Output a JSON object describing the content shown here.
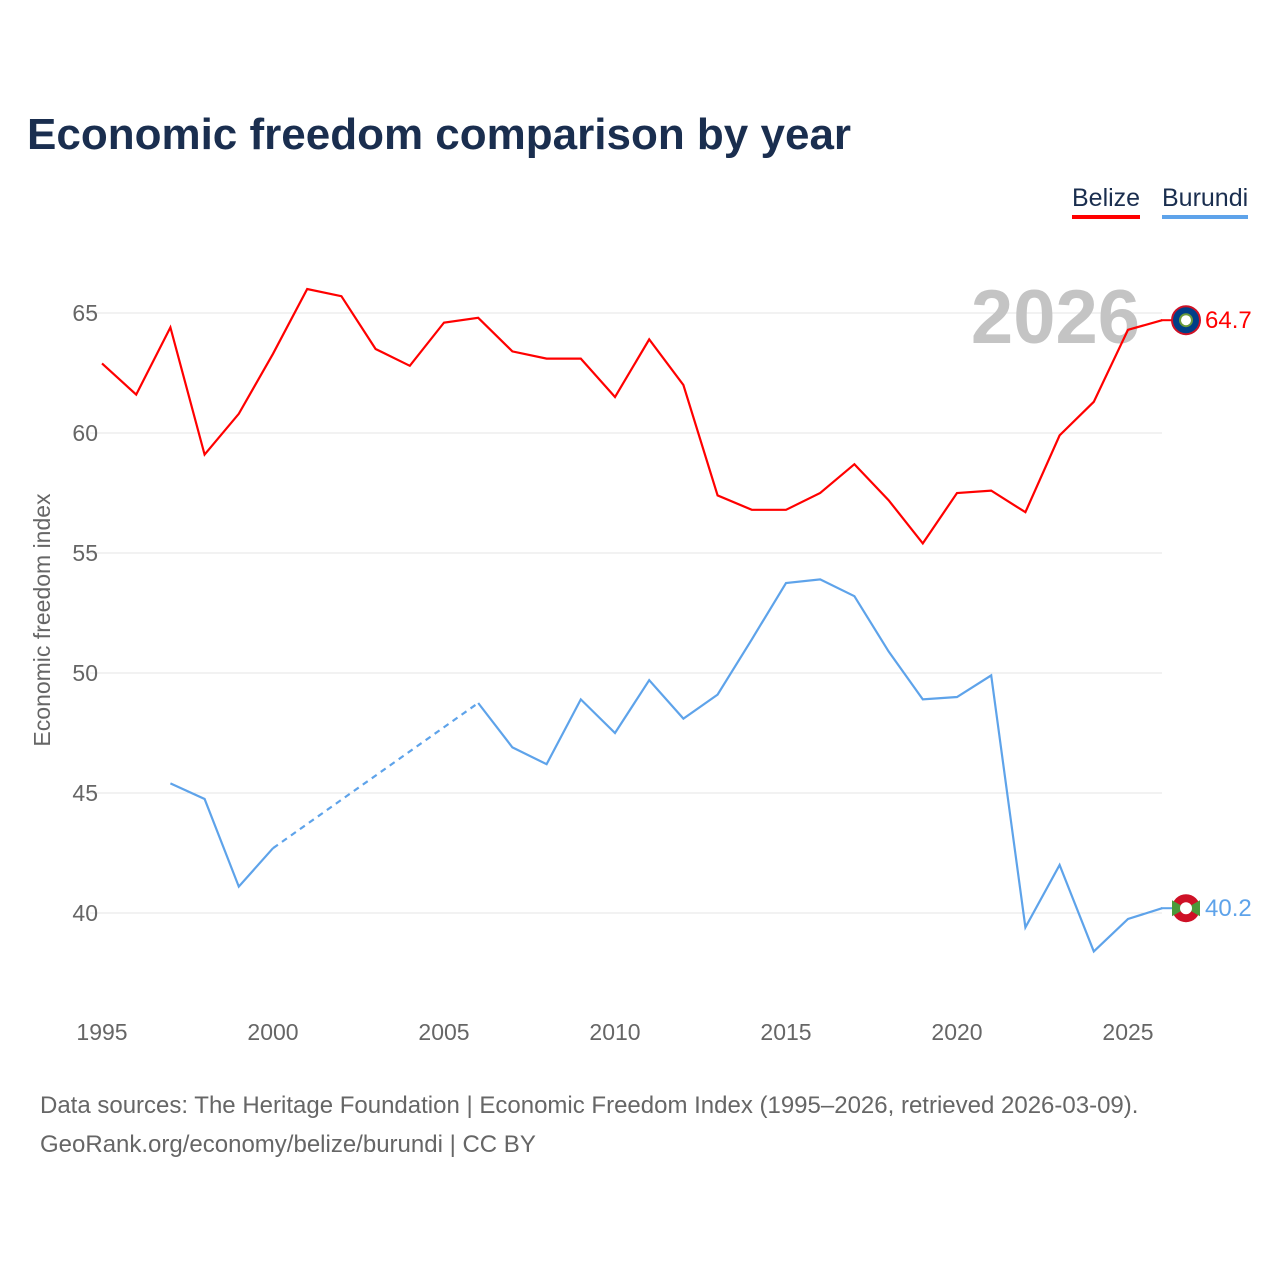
{
  "title": "Economic freedom comparison by year",
  "source_line1": "Data sources: The Heritage Foundation | Economic Freedom Index (1995–2026, retrieved 2026-03-09).",
  "source_line2": "GeoRank.org/economy/belize/burundi | CC BY",
  "chart_data": {
    "type": "line",
    "title": "Economic freedom comparison by year",
    "ylabel": "Economic freedom index",
    "xlabel": "",
    "xlim": [
      1995,
      2026
    ],
    "ylim": [
      36.5,
      68
    ],
    "x_ticks": [
      1995,
      2000,
      2005,
      2010,
      2015,
      2020,
      2025
    ],
    "y_ticks": [
      40,
      45,
      50,
      55,
      60,
      65
    ],
    "watermark_year": "2026",
    "legend_position": "top-right",
    "grid": true,
    "series": [
      {
        "name": "Belize",
        "color": "#ff0000",
        "end_label": "64.7",
        "x": [
          1995,
          1996,
          1997,
          1998,
          1999,
          2000,
          2001,
          2002,
          2003,
          2004,
          2005,
          2006,
          2007,
          2008,
          2009,
          2010,
          2011,
          2012,
          2013,
          2014,
          2015,
          2016,
          2017,
          2018,
          2019,
          2020,
          2021,
          2022,
          2023,
          2024,
          2025,
          2026
        ],
        "values": [
          62.9,
          61.6,
          64.4,
          59.1,
          60.8,
          63.3,
          66.0,
          65.7,
          63.5,
          62.8,
          64.6,
          64.8,
          63.4,
          63.1,
          63.1,
          61.5,
          63.9,
          62.0,
          57.4,
          56.8,
          56.8,
          57.5,
          58.7,
          57.2,
          55.4,
          57.5,
          57.6,
          56.7,
          59.9,
          61.3,
          64.3,
          64.7
        ]
      },
      {
        "name": "Burundi",
        "color": "#5ea3ea",
        "end_label": "40.2",
        "x": [
          1997,
          1998,
          1999,
          2000,
          2006,
          2007,
          2008,
          2009,
          2010,
          2011,
          2012,
          2013,
          2014,
          2015,
          2016,
          2017,
          2018,
          2019,
          2020,
          2021,
          2022,
          2023,
          2024,
          2025,
          2026
        ],
        "values": [
          45.4,
          44.75,
          41.1,
          42.7,
          48.75,
          46.9,
          46.2,
          48.9,
          47.5,
          49.7,
          48.1,
          49.1,
          51.4,
          53.75,
          53.9,
          53.2,
          50.9,
          48.9,
          49.0,
          49.9,
          39.4,
          42.0,
          38.4,
          39.75,
          40.2
        ],
        "gap_dashed": [
          [
            2000,
            2006
          ]
        ]
      }
    ]
  }
}
